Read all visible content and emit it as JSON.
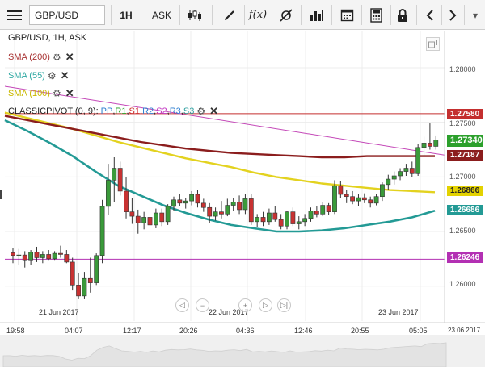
{
  "toolbar": {
    "symbol": "GBP/USD",
    "timeframe": "1H",
    "price_type": "ASK",
    "fx_label": "f(x)"
  },
  "legend": {
    "title": "GBP/USD, 1H, ASK",
    "items": [
      {
        "label": "SMA (200)",
        "color": "#a83232"
      },
      {
        "label": "SMA (55)",
        "color": "#2aa6a0"
      },
      {
        "label": "SMA (100)",
        "color": "#e8d81c"
      }
    ],
    "pivot": {
      "prefix": "CLASSICPIVOT (0, 9):",
      "parts": [
        {
          "text": "PP",
          "color": "#2f7fd0"
        },
        {
          "text": "R1",
          "color": "#23a323"
        },
        {
          "text": "S1",
          "color": "#d03030"
        },
        {
          "text": "R2",
          "color": "#2f7fd0"
        },
        {
          "text": "S2",
          "color": "#c030c0"
        },
        {
          "text": "R3",
          "color": "#2f7fd0"
        },
        {
          "text": "S3",
          "color": "#2f9f9f"
        }
      ]
    }
  },
  "price_axis": {
    "ticks": [
      "1.28000",
      "1.27500",
      "1.27000",
      "1.26500",
      "1.26000"
    ],
    "labels": [
      {
        "value": "1.27580",
        "color": "#c42f2f"
      },
      {
        "value": "1.27340",
        "color": "#2ca02c"
      },
      {
        "value": "1.27187",
        "color": "#8b1d1d"
      },
      {
        "value": "1.26866",
        "color": "#e3d200"
      },
      {
        "value": "1.26686",
        "color": "#239a95"
      },
      {
        "value": "1.26246",
        "color": "#b330b3"
      }
    ]
  },
  "time_axis": {
    "ticks": [
      "19:58",
      "04:07",
      "12:17",
      "20:26",
      "04:36",
      "12:46",
      "20:55",
      "05:05"
    ],
    "end_date": "23.06.2017",
    "dates": [
      "21 Jun 2017",
      "22 Jun 2017",
      "23 Jun 2017"
    ]
  },
  "chart_data": {
    "type": "candlestick",
    "title": "GBP/USD, 1H, ASK",
    "ylim": [
      1.2568,
      1.2834
    ],
    "up_color": "#3a9a3a",
    "down_color": "#c83232",
    "candles": [
      {
        "o": 1.26305,
        "h": 1.2635,
        "l": 1.2621,
        "c": 1.2628
      },
      {
        "o": 1.2628,
        "h": 1.2634,
        "l": 1.2619,
        "c": 1.26285
      },
      {
        "o": 1.26285,
        "h": 1.2632,
        "l": 1.2617,
        "c": 1.2624
      },
      {
        "o": 1.2624,
        "h": 1.2633,
        "l": 1.2619,
        "c": 1.2631
      },
      {
        "o": 1.2631,
        "h": 1.2636,
        "l": 1.2622,
        "c": 1.2626
      },
      {
        "o": 1.2626,
        "h": 1.2632,
        "l": 1.2621,
        "c": 1.2629
      },
      {
        "o": 1.2629,
        "h": 1.2633,
        "l": 1.2624,
        "c": 1.2625
      },
      {
        "o": 1.2625,
        "h": 1.2632,
        "l": 1.2624,
        "c": 1.263
      },
      {
        "o": 1.263,
        "h": 1.2637,
        "l": 1.2626,
        "c": 1.2629
      },
      {
        "o": 1.2629,
        "h": 1.2633,
        "l": 1.2621,
        "c": 1.2622
      },
      {
        "o": 1.2622,
        "h": 1.2626,
        "l": 1.2596,
        "c": 1.2601
      },
      {
        "o": 1.2601,
        "h": 1.2612,
        "l": 1.2588,
        "c": 1.2591
      },
      {
        "o": 1.2591,
        "h": 1.2613,
        "l": 1.2588,
        "c": 1.2607
      },
      {
        "o": 1.2607,
        "h": 1.2626,
        "l": 1.2594,
        "c": 1.2603
      },
      {
        "o": 1.2603,
        "h": 1.263,
        "l": 1.2601,
        "c": 1.2628
      },
      {
        "o": 1.2628,
        "h": 1.2679,
        "l": 1.2621,
        "c": 1.2673
      },
      {
        "o": 1.2673,
        "h": 1.2712,
        "l": 1.2665,
        "c": 1.2697
      },
      {
        "o": 1.2697,
        "h": 1.2718,
        "l": 1.2677,
        "c": 1.2708
      },
      {
        "o": 1.2708,
        "h": 1.2714,
        "l": 1.2683,
        "c": 1.2687
      },
      {
        "o": 1.2687,
        "h": 1.27,
        "l": 1.2662,
        "c": 1.2668
      },
      {
        "o": 1.2668,
        "h": 1.2681,
        "l": 1.2657,
        "c": 1.2664
      },
      {
        "o": 1.2664,
        "h": 1.267,
        "l": 1.2648,
        "c": 1.2658
      },
      {
        "o": 1.2658,
        "h": 1.2668,
        "l": 1.2652,
        "c": 1.2663
      },
      {
        "o": 1.2663,
        "h": 1.2667,
        "l": 1.2641,
        "c": 1.2656
      },
      {
        "o": 1.2656,
        "h": 1.2671,
        "l": 1.2653,
        "c": 1.2667
      },
      {
        "o": 1.2667,
        "h": 1.2671,
        "l": 1.2655,
        "c": 1.2659
      },
      {
        "o": 1.2659,
        "h": 1.2675,
        "l": 1.2656,
        "c": 1.2673
      },
      {
        "o": 1.2673,
        "h": 1.2682,
        "l": 1.2669,
        "c": 1.2679
      },
      {
        "o": 1.2679,
        "h": 1.2684,
        "l": 1.2673,
        "c": 1.2676
      },
      {
        "o": 1.2676,
        "h": 1.2681,
        "l": 1.2671,
        "c": 1.2678
      },
      {
        "o": 1.2678,
        "h": 1.2687,
        "l": 1.2674,
        "c": 1.2684
      },
      {
        "o": 1.2684,
        "h": 1.2688,
        "l": 1.2672,
        "c": 1.2676
      },
      {
        "o": 1.2676,
        "h": 1.268,
        "l": 1.2668,
        "c": 1.2672
      },
      {
        "o": 1.2672,
        "h": 1.2676,
        "l": 1.2658,
        "c": 1.2664
      },
      {
        "o": 1.2664,
        "h": 1.2672,
        "l": 1.266,
        "c": 1.2668
      },
      {
        "o": 1.2668,
        "h": 1.2678,
        "l": 1.2662,
        "c": 1.2666
      },
      {
        "o": 1.2666,
        "h": 1.268,
        "l": 1.2664,
        "c": 1.2674
      },
      {
        "o": 1.2674,
        "h": 1.2681,
        "l": 1.2669,
        "c": 1.2677
      },
      {
        "o": 1.2677,
        "h": 1.2683,
        "l": 1.2666,
        "c": 1.267
      },
      {
        "o": 1.267,
        "h": 1.2684,
        "l": 1.2666,
        "c": 1.268
      },
      {
        "o": 1.268,
        "h": 1.2684,
        "l": 1.2656,
        "c": 1.2659
      },
      {
        "o": 1.2659,
        "h": 1.2666,
        "l": 1.2654,
        "c": 1.2663
      },
      {
        "o": 1.2663,
        "h": 1.2668,
        "l": 1.2655,
        "c": 1.2659
      },
      {
        "o": 1.2659,
        "h": 1.2671,
        "l": 1.2656,
        "c": 1.2667
      },
      {
        "o": 1.2667,
        "h": 1.2673,
        "l": 1.2659,
        "c": 1.2661
      },
      {
        "o": 1.2661,
        "h": 1.2666,
        "l": 1.2652,
        "c": 1.2655
      },
      {
        "o": 1.2655,
        "h": 1.2669,
        "l": 1.2652,
        "c": 1.2668
      },
      {
        "o": 1.2668,
        "h": 1.2672,
        "l": 1.2655,
        "c": 1.2657
      },
      {
        "o": 1.2657,
        "h": 1.2664,
        "l": 1.2652,
        "c": 1.2659
      },
      {
        "o": 1.2659,
        "h": 1.2666,
        "l": 1.2655,
        "c": 1.2662
      },
      {
        "o": 1.2662,
        "h": 1.2672,
        "l": 1.2659,
        "c": 1.2669
      },
      {
        "o": 1.2669,
        "h": 1.2673,
        "l": 1.2663,
        "c": 1.2666
      },
      {
        "o": 1.2666,
        "h": 1.2677,
        "l": 1.2664,
        "c": 1.2674
      },
      {
        "o": 1.2674,
        "h": 1.2676,
        "l": 1.2665,
        "c": 1.2668
      },
      {
        "o": 1.2668,
        "h": 1.2697,
        "l": 1.2666,
        "c": 1.2692
      },
      {
        "o": 1.2692,
        "h": 1.2696,
        "l": 1.2681,
        "c": 1.2684
      },
      {
        "o": 1.2684,
        "h": 1.2688,
        "l": 1.2676,
        "c": 1.2682
      },
      {
        "o": 1.2682,
        "h": 1.2687,
        "l": 1.2675,
        "c": 1.2678
      },
      {
        "o": 1.2678,
        "h": 1.2684,
        "l": 1.2673,
        "c": 1.2681
      },
      {
        "o": 1.2681,
        "h": 1.2685,
        "l": 1.2676,
        "c": 1.2679
      },
      {
        "o": 1.2679,
        "h": 1.2682,
        "l": 1.2672,
        "c": 1.2676
      },
      {
        "o": 1.2676,
        "h": 1.2684,
        "l": 1.2674,
        "c": 1.2682
      },
      {
        "o": 1.2682,
        "h": 1.2695,
        "l": 1.2678,
        "c": 1.2693
      },
      {
        "o": 1.2693,
        "h": 1.2702,
        "l": 1.2688,
        "c": 1.2698
      },
      {
        "o": 1.2698,
        "h": 1.2705,
        "l": 1.2693,
        "c": 1.2701
      },
      {
        "o": 1.2701,
        "h": 1.2708,
        "l": 1.2697,
        "c": 1.2705
      },
      {
        "o": 1.2705,
        "h": 1.2712,
        "l": 1.2701,
        "c": 1.2708
      },
      {
        "o": 1.2708,
        "h": 1.2714,
        "l": 1.27,
        "c": 1.2703
      },
      {
        "o": 1.2703,
        "h": 1.273,
        "l": 1.2701,
        "c": 1.2727
      },
      {
        "o": 1.2727,
        "h": 1.2737,
        "l": 1.2719,
        "c": 1.2731
      },
      {
        "o": 1.2731,
        "h": 1.2749,
        "l": 1.2725,
        "c": 1.2728
      },
      {
        "o": 1.2728,
        "h": 1.2738,
        "l": 1.2725,
        "c": 1.2734
      }
    ],
    "sma200": [
      1.2756,
      1.2752,
      1.2748,
      1.2744,
      1.274,
      1.2736,
      1.2732,
      1.2729,
      1.2726,
      1.2724,
      1.2722,
      1.2721,
      1.272,
      1.2719,
      1.2718,
      1.2718,
      1.2719,
      1.2719,
      1.2719,
      1.2719
    ],
    "sma55": [
      1.2752,
      1.2742,
      1.2731,
      1.2719,
      1.2705,
      1.2692,
      1.2683,
      1.2674,
      1.2667,
      1.2661,
      1.2656,
      1.2653,
      1.265,
      1.265,
      1.2651,
      1.2653,
      1.2656,
      1.2659,
      1.2663,
      1.2669
    ],
    "sma100": [
      1.2759,
      1.2754,
      1.2749,
      1.2744,
      1.2738,
      1.2732,
      1.2727,
      1.2722,
      1.2717,
      1.2713,
      1.2709,
      1.2704,
      1.27,
      1.2697,
      1.2694,
      1.2692,
      1.269,
      1.2688,
      1.2687,
      1.2686
    ],
    "trendline": [
      1.2783,
      1.272
    ],
    "hlines": [
      {
        "value": 1.2758,
        "color": "#c42f2f"
      },
      {
        "value": 1.26246,
        "color": "#b330b3"
      }
    ],
    "current_price": 1.2734
  }
}
